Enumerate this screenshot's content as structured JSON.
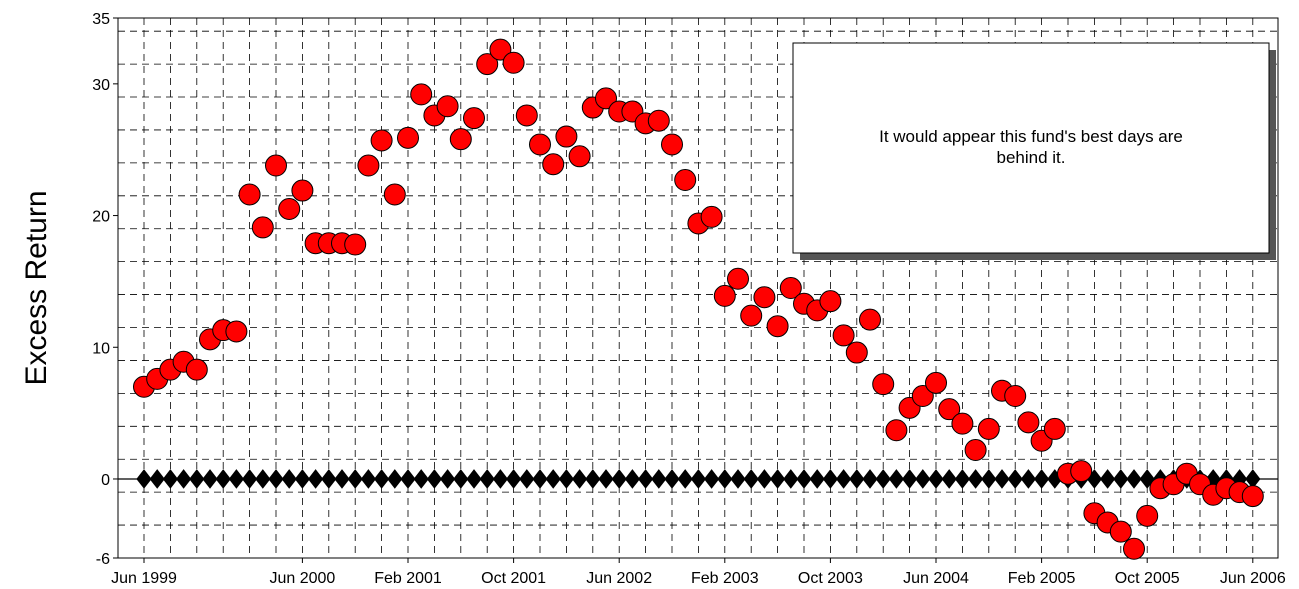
{
  "chart_data": {
    "type": "scatter",
    "title": "",
    "xlabel": "",
    "ylabel": "Excess Return",
    "grid": true,
    "x": [
      "1999-06",
      "1999-07",
      "1999-08",
      "1999-09",
      "1999-10",
      "1999-11",
      "1999-12",
      "2000-01",
      "2000-02",
      "2000-03",
      "2000-04",
      "2000-05",
      "2000-06",
      "2000-07",
      "2000-08",
      "2000-09",
      "2000-10",
      "2000-11",
      "2000-12",
      "2001-01",
      "2001-02",
      "2001-03",
      "2001-04",
      "2001-05",
      "2001-06",
      "2001-07",
      "2001-08",
      "2001-09",
      "2001-10",
      "2001-11",
      "2001-12",
      "2002-01",
      "2002-02",
      "2002-03",
      "2002-04",
      "2002-05",
      "2002-06",
      "2002-07",
      "2002-08",
      "2002-09",
      "2002-10",
      "2002-11",
      "2002-12",
      "2003-01",
      "2003-02",
      "2003-03",
      "2003-04",
      "2003-05",
      "2003-06",
      "2003-07",
      "2003-08",
      "2003-09",
      "2003-10",
      "2003-11",
      "2003-12",
      "2004-01",
      "2004-02",
      "2004-03",
      "2004-04",
      "2004-05",
      "2004-06",
      "2004-07",
      "2004-08",
      "2004-09",
      "2004-10",
      "2004-11",
      "2004-12",
      "2005-01",
      "2005-02",
      "2005-03",
      "2005-04",
      "2005-05",
      "2005-06",
      "2005-07",
      "2005-08",
      "2005-09",
      "2005-10",
      "2005-11",
      "2005-12",
      "2006-01",
      "2006-02",
      "2006-03",
      "2006-04",
      "2006-05",
      "2006-06"
    ],
    "series": [
      {
        "marker": "circle",
        "color": "#ff0000",
        "values": [
          7.0,
          7.6,
          8.3,
          8.9,
          8.3,
          10.6,
          11.3,
          11.2,
          21.6,
          19.1,
          23.8,
          20.5,
          21.9,
          17.9,
          17.9,
          17.9,
          17.8,
          23.8,
          25.7,
          21.6,
          25.9,
          29.2,
          27.6,
          28.3,
          25.8,
          27.4,
          31.5,
          32.6,
          31.6,
          27.6,
          25.4,
          23.9,
          26.0,
          24.5,
          28.2,
          28.9,
          27.9,
          27.9,
          27.0,
          27.2,
          25.4,
          22.7,
          19.4,
          19.9,
          13.9,
          15.2,
          12.4,
          13.8,
          11.6,
          14.5,
          13.3,
          12.8,
          13.5,
          10.9,
          9.6,
          12.1,
          7.2,
          3.7,
          5.4,
          6.3,
          7.3,
          5.3,
          4.2,
          2.2,
          3.8,
          6.7,
          6.3,
          4.3,
          2.9,
          3.8,
          0.4,
          0.6,
          -2.6,
          -3.3,
          -4.0,
          -5.3,
          -2.8,
          -0.7,
          -0.4,
          0.4,
          -0.4,
          -1.2,
          -0.7,
          -1.0,
          -1.3
        ]
      },
      {
        "marker": "diamond",
        "color": "#000000",
        "values": [
          0,
          0,
          0,
          0,
          0,
          0,
          0,
          0,
          0,
          0,
          0,
          0,
          0,
          0,
          0,
          0,
          0,
          0,
          0,
          0,
          0,
          0,
          0,
          0,
          0,
          0,
          0,
          0,
          0,
          0,
          0,
          0,
          0,
          0,
          0,
          0,
          0,
          0,
          0,
          0,
          0,
          0,
          0,
          0,
          0,
          0,
          0,
          0,
          0,
          0,
          0,
          0,
          0,
          0,
          0,
          0,
          0,
          0,
          0,
          0,
          0,
          0,
          0,
          0,
          0,
          0,
          0,
          0,
          0,
          0,
          0,
          0,
          0,
          0,
          0,
          0,
          0,
          0,
          0,
          0,
          0,
          0,
          0,
          0,
          0
        ]
      }
    ],
    "xtick_labels": [
      "Jun 1999",
      "Jun 2000",
      "Feb 2001",
      "Oct 2001",
      "Jun 2002",
      "Feb 2003",
      "Oct 2003",
      "Jun 2004",
      "Feb 2005",
      "Oct 2005",
      "Jun 2006"
    ],
    "xtick_positions": [
      "1999-06",
      "2000-06",
      "2001-02",
      "2001-10",
      "2002-06",
      "2003-02",
      "2003-10",
      "2004-06",
      "2005-02",
      "2005-10",
      "2006-06"
    ],
    "yticks": [
      -6,
      0,
      10,
      20,
      30,
      35
    ],
    "ylim": [
      -6,
      35
    ],
    "annotation": "It would appear this fund's best days are behind it."
  }
}
